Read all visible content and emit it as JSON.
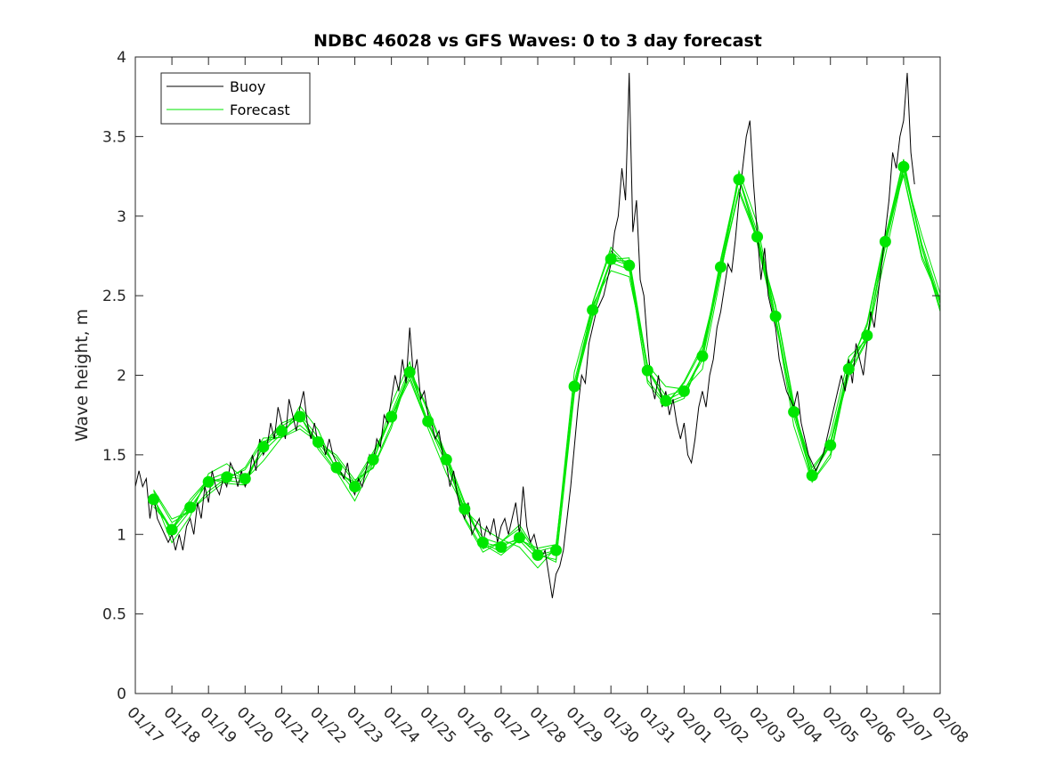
{
  "chart_data": {
    "type": "line",
    "title": "NDBC 46028 vs GFS Waves: 0 to 3 day forecast",
    "xlabel": "",
    "ylabel": "Wave height, m",
    "xlim": [
      0,
      22
    ],
    "ylim": [
      0,
      4
    ],
    "x_tick_labels": [
      "01/17",
      "01/18",
      "01/19",
      "01/20",
      "01/21",
      "01/22",
      "01/23",
      "01/24",
      "01/25",
      "01/26",
      "01/27",
      "01/28",
      "01/29",
      "01/30",
      "01/31",
      "02/01",
      "02/02",
      "02/03",
      "02/04",
      "02/05",
      "02/06",
      "02/07",
      "02/08"
    ],
    "y_ticks": [
      0,
      0.5,
      1,
      1.5,
      2,
      2.5,
      3,
      3.5,
      4
    ],
    "y_tick_labels": [
      "0",
      "0.5",
      "1",
      "1.5",
      "2",
      "2.5",
      "3",
      "3.5",
      "4"
    ],
    "grid": false,
    "legend": {
      "position": "top-left",
      "entries": [
        "Buoy",
        "Forecast"
      ]
    },
    "colors": {
      "buoy": "#000000",
      "forecast": "#00e600"
    },
    "series": [
      {
        "name": "Buoy",
        "x_units": "days since 01/17",
        "points": [
          [
            0,
            1.3
          ],
          [
            0.1,
            1.4
          ],
          [
            0.2,
            1.3
          ],
          [
            0.3,
            1.35
          ],
          [
            0.4,
            1.1
          ],
          [
            0.5,
            1.25
          ],
          [
            0.6,
            1.1
          ],
          [
            0.7,
            1.05
          ],
          [
            0.8,
            1.0
          ],
          [
            0.9,
            0.95
          ],
          [
            1.0,
            1.0
          ],
          [
            1.1,
            0.9
          ],
          [
            1.2,
            1.0
          ],
          [
            1.3,
            0.9
          ],
          [
            1.4,
            1.05
          ],
          [
            1.5,
            1.1
          ],
          [
            1.6,
            1.0
          ],
          [
            1.7,
            1.2
          ],
          [
            1.8,
            1.1
          ],
          [
            1.9,
            1.3
          ],
          [
            2.0,
            1.2
          ],
          [
            2.1,
            1.4
          ],
          [
            2.2,
            1.3
          ],
          [
            2.3,
            1.25
          ],
          [
            2.4,
            1.35
          ],
          [
            2.5,
            1.3
          ],
          [
            2.6,
            1.45
          ],
          [
            2.7,
            1.4
          ],
          [
            2.8,
            1.3
          ],
          [
            2.9,
            1.4
          ],
          [
            3.0,
            1.3
          ],
          [
            3.1,
            1.35
          ],
          [
            3.2,
            1.5
          ],
          [
            3.3,
            1.4
          ],
          [
            3.4,
            1.6
          ],
          [
            3.5,
            1.5
          ],
          [
            3.6,
            1.55
          ],
          [
            3.7,
            1.7
          ],
          [
            3.8,
            1.6
          ],
          [
            3.9,
            1.8
          ],
          [
            4.0,
            1.7
          ],
          [
            4.1,
            1.6
          ],
          [
            4.2,
            1.85
          ],
          [
            4.3,
            1.75
          ],
          [
            4.4,
            1.65
          ],
          [
            4.5,
            1.8
          ],
          [
            4.6,
            1.9
          ],
          [
            4.7,
            1.7
          ],
          [
            4.8,
            1.6
          ],
          [
            4.9,
            1.7
          ],
          [
            5.0,
            1.55
          ],
          [
            5.1,
            1.6
          ],
          [
            5.2,
            1.5
          ],
          [
            5.3,
            1.6
          ],
          [
            5.4,
            1.5
          ],
          [
            5.5,
            1.45
          ],
          [
            5.6,
            1.4
          ],
          [
            5.7,
            1.35
          ],
          [
            5.8,
            1.45
          ],
          [
            5.9,
            1.3
          ],
          [
            6.0,
            1.25
          ],
          [
            6.1,
            1.35
          ],
          [
            6.2,
            1.3
          ],
          [
            6.3,
            1.4
          ],
          [
            6.4,
            1.5
          ],
          [
            6.5,
            1.45
          ],
          [
            6.6,
            1.6
          ],
          [
            6.7,
            1.55
          ],
          [
            6.8,
            1.75
          ],
          [
            6.9,
            1.7
          ],
          [
            7.0,
            1.85
          ],
          [
            7.1,
            2.0
          ],
          [
            7.2,
            1.9
          ],
          [
            7.3,
            2.1
          ],
          [
            7.4,
            1.95
          ],
          [
            7.5,
            2.3
          ],
          [
            7.6,
            2.0
          ],
          [
            7.7,
            2.1
          ],
          [
            7.8,
            1.85
          ],
          [
            7.9,
            1.9
          ],
          [
            8.0,
            1.75
          ],
          [
            8.1,
            1.7
          ],
          [
            8.2,
            1.6
          ],
          [
            8.3,
            1.65
          ],
          [
            8.4,
            1.5
          ],
          [
            8.5,
            1.45
          ],
          [
            8.6,
            1.3
          ],
          [
            8.7,
            1.4
          ],
          [
            8.8,
            1.25
          ],
          [
            8.9,
            1.15
          ],
          [
            9.0,
            1.1
          ],
          [
            9.1,
            1.2
          ],
          [
            9.2,
            1.0
          ],
          [
            9.3,
            1.05
          ],
          [
            9.4,
            1.1
          ],
          [
            9.5,
            0.95
          ],
          [
            9.6,
            1.05
          ],
          [
            9.7,
            1.0
          ],
          [
            9.8,
            1.1
          ],
          [
            9.9,
            0.95
          ],
          [
            10.0,
            1.05
          ],
          [
            10.1,
            1.1
          ],
          [
            10.2,
            1.0
          ],
          [
            10.3,
            1.1
          ],
          [
            10.4,
            1.2
          ],
          [
            10.5,
            1.0
          ],
          [
            10.6,
            1.3
          ],
          [
            10.7,
            1.05
          ],
          [
            10.8,
            0.95
          ],
          [
            10.9,
            1.0
          ],
          [
            11.0,
            0.9
          ],
          [
            11.1,
            0.85
          ],
          [
            11.2,
            0.9
          ],
          [
            11.3,
            0.75
          ],
          [
            11.4,
            0.6
          ],
          [
            11.5,
            0.75
          ],
          [
            11.6,
            0.8
          ],
          [
            11.7,
            0.9
          ],
          [
            11.8,
            1.1
          ],
          [
            11.9,
            1.3
          ],
          [
            12.0,
            1.55
          ],
          [
            12.1,
            1.8
          ],
          [
            12.2,
            2.0
          ],
          [
            12.3,
            1.95
          ],
          [
            12.4,
            2.2
          ],
          [
            12.5,
            2.3
          ],
          [
            12.6,
            2.4
          ],
          [
            12.7,
            2.45
          ],
          [
            12.8,
            2.5
          ],
          [
            12.9,
            2.6
          ],
          [
            13.0,
            2.7
          ],
          [
            13.1,
            2.9
          ],
          [
            13.2,
            3.0
          ],
          [
            13.3,
            3.3
          ],
          [
            13.4,
            3.1
          ],
          [
            13.5,
            3.9
          ],
          [
            13.6,
            2.9
          ],
          [
            13.7,
            3.1
          ],
          [
            13.8,
            2.6
          ],
          [
            13.9,
            2.5
          ],
          [
            14.0,
            2.2
          ],
          [
            14.1,
            1.95
          ],
          [
            14.2,
            1.85
          ],
          [
            14.3,
            2.0
          ],
          [
            14.4,
            1.8
          ],
          [
            14.5,
            1.9
          ],
          [
            14.6,
            1.75
          ],
          [
            14.7,
            1.85
          ],
          [
            14.8,
            1.7
          ],
          [
            14.9,
            1.6
          ],
          [
            15.0,
            1.7
          ],
          [
            15.1,
            1.5
          ],
          [
            15.2,
            1.45
          ],
          [
            15.3,
            1.6
          ],
          [
            15.4,
            1.8
          ],
          [
            15.5,
            1.9
          ],
          [
            15.6,
            1.8
          ],
          [
            15.7,
            2.0
          ],
          [
            15.8,
            2.1
          ],
          [
            15.9,
            2.3
          ],
          [
            16.0,
            2.4
          ],
          [
            16.1,
            2.55
          ],
          [
            16.2,
            2.7
          ],
          [
            16.3,
            2.65
          ],
          [
            16.4,
            2.85
          ],
          [
            16.5,
            3.1
          ],
          [
            16.6,
            3.3
          ],
          [
            16.7,
            3.5
          ],
          [
            16.8,
            3.6
          ],
          [
            16.9,
            3.2
          ],
          [
            17.0,
            2.9
          ],
          [
            17.1,
            2.6
          ],
          [
            17.2,
            2.8
          ],
          [
            17.3,
            2.5
          ],
          [
            17.4,
            2.4
          ],
          [
            17.5,
            2.3
          ],
          [
            17.6,
            2.1
          ],
          [
            17.7,
            2.0
          ],
          [
            17.8,
            1.9
          ],
          [
            17.9,
            1.85
          ],
          [
            18.0,
            1.8
          ],
          [
            18.1,
            1.9
          ],
          [
            18.2,
            1.7
          ],
          [
            18.3,
            1.6
          ],
          [
            18.4,
            1.5
          ],
          [
            18.5,
            1.45
          ],
          [
            18.6,
            1.4
          ],
          [
            18.7,
            1.45
          ],
          [
            18.8,
            1.5
          ],
          [
            18.9,
            1.6
          ],
          [
            19.0,
            1.7
          ],
          [
            19.1,
            1.8
          ],
          [
            19.2,
            1.9
          ],
          [
            19.3,
            2.0
          ],
          [
            19.4,
            1.9
          ],
          [
            19.5,
            2.1
          ],
          [
            19.6,
            1.95
          ],
          [
            19.7,
            2.2
          ],
          [
            19.8,
            2.1
          ],
          [
            19.9,
            2.0
          ],
          [
            20.0,
            2.2
          ],
          [
            20.1,
            2.4
          ],
          [
            20.2,
            2.3
          ],
          [
            20.3,
            2.5
          ],
          [
            20.4,
            2.7
          ],
          [
            20.5,
            2.9
          ],
          [
            20.6,
            3.1
          ],
          [
            20.7,
            3.4
          ],
          [
            20.8,
            3.3
          ],
          [
            20.9,
            3.5
          ],
          [
            21.0,
            3.6
          ],
          [
            21.1,
            3.9
          ],
          [
            21.2,
            3.4
          ],
          [
            21.3,
            3.2
          ]
        ]
      },
      {
        "name": "Forecast",
        "x_units": "days since 01/17",
        "points": [
          [
            0.5,
            1.22
          ],
          [
            1.0,
            1.03
          ],
          [
            1.5,
            1.17
          ],
          [
            2.0,
            1.33
          ],
          [
            2.5,
            1.36
          ],
          [
            3.0,
            1.35
          ],
          [
            3.5,
            1.55
          ],
          [
            4.0,
            1.65
          ],
          [
            4.5,
            1.74
          ],
          [
            5.0,
            1.58
          ],
          [
            5.5,
            1.42
          ],
          [
            6.0,
            1.3
          ],
          [
            6.5,
            1.47
          ],
          [
            7.0,
            1.74
          ],
          [
            7.5,
            2.02
          ],
          [
            8.0,
            1.71
          ],
          [
            8.5,
            1.47
          ],
          [
            9.0,
            1.16
          ],
          [
            9.5,
            0.95
          ],
          [
            10.0,
            0.92
          ],
          [
            10.5,
            0.98
          ],
          [
            11.0,
            0.87
          ],
          [
            11.5,
            0.9
          ],
          [
            12.0,
            1.93
          ],
          [
            12.5,
            2.41
          ],
          [
            13.0,
            2.73
          ],
          [
            13.5,
            2.69
          ],
          [
            14.0,
            2.03
          ],
          [
            14.5,
            1.84
          ],
          [
            15.0,
            1.9
          ],
          [
            15.5,
            2.12
          ],
          [
            16.0,
            2.68
          ],
          [
            16.5,
            3.23
          ],
          [
            17.0,
            2.87
          ],
          [
            17.5,
            2.37
          ],
          [
            18.0,
            1.77
          ],
          [
            18.5,
            1.37
          ],
          [
            19.0,
            1.56
          ],
          [
            19.5,
            2.04
          ],
          [
            20.0,
            2.25
          ],
          [
            20.5,
            2.84
          ],
          [
            21.0,
            3.31
          ],
          [
            21.5,
            2.8
          ],
          [
            22.0,
            2.45
          ]
        ]
      }
    ]
  }
}
